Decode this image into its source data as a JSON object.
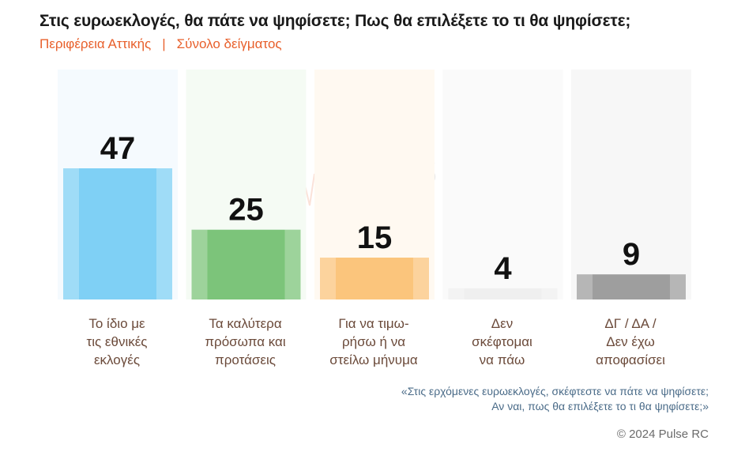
{
  "header": {
    "title": "Στις ευρωεκλογές, θα πάτε να ψηφίσετε; Πως θα επιλέξετε το τι θα ψηφίσετε;",
    "region": "Περιφέρεια Αττικής",
    "separator": "|",
    "sample": "Σύνολο δείγματος"
  },
  "chart_data": {
    "type": "bar",
    "categories": [
      "Το ίδιο με τις εθνικές εκλογές",
      "Τα καλύτερα πρόσωπα και προτάσεις",
      "Για να τιμω- ρήσω ή να στείλω μήνυμα",
      "Δεν σκέφτομαι να πάω",
      "ΔΓ / ΔΑ / Δεν έχω αποφασίσει"
    ],
    "values": [
      47,
      25,
      15,
      4,
      9
    ],
    "colors": [
      "#7fd0f5",
      "#7cc47a",
      "#fbc57c",
      "#efefef",
      "#9e9e9e"
    ],
    "bg_colors": [
      "#f5fafe",
      "#f5fbf4",
      "#fff9f1",
      "#fafafa",
      "#f7f7f7"
    ],
    "ylim": [
      0,
      47
    ]
  },
  "labels": [
    [
      "Το ίδιο με",
      "τις εθνικές",
      "εκλογές"
    ],
    [
      "Τα καλύτερα",
      "πρόσωπα και",
      "προτάσεις"
    ],
    [
      "Για να τιμω-",
      "ρήσω ή να",
      "στείλω μήνυμα"
    ],
    [
      "Δεν",
      "σκέφτομαι",
      "να πάω"
    ],
    [
      "ΔΓ / ΔΑ /",
      "Δεν έχω",
      "αποφασίσει"
    ]
  ],
  "watermark": {
    "name": "PULSE",
    "tagline": "RESEARCH & CONSULTING"
  },
  "footer": {
    "question_line1": "«Στις ερχόμενες ευρωεκλογές, σκέφτεστε να πάτε να ψηφίσετε;",
    "question_line2": "Αν ναι, πως θα επιλέξετε το τι θα ψηφίσετε;»",
    "copyright": "© 2024 Pulse RC"
  }
}
